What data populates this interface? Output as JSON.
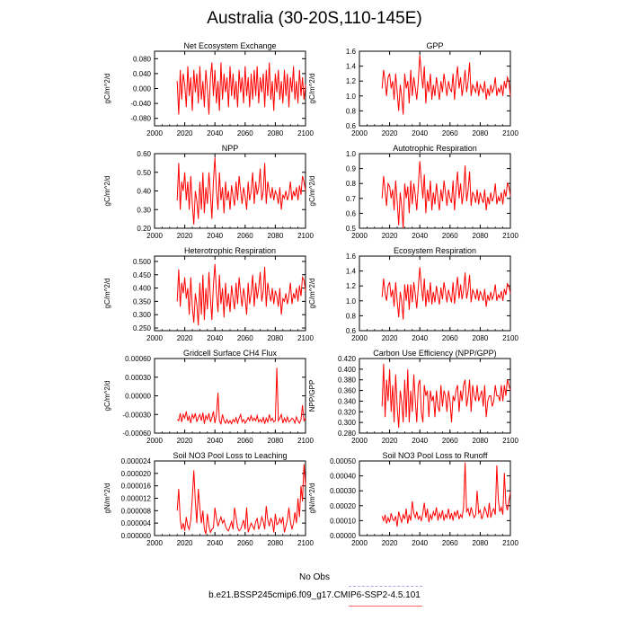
{
  "title": "Australia (30-20S,110-145E)",
  "legend": {
    "obs_label": "No Obs",
    "obs_color": "#aaaaee",
    "model_label": "b.e21.BSSP245cmip6.f09_g17.CMIP6-SSP2-4.5.101",
    "model_color": "#ff6666"
  },
  "series_color": "#ff0000",
  "chart_data": [
    {
      "id": "nee",
      "type": "line",
      "title": "Net Ecosystem Exchange",
      "ylabel": "gC/m^2/d",
      "xlim": [
        2000,
        2100
      ],
      "xticks": [
        2000,
        2020,
        2040,
        2060,
        2080,
        2100
      ],
      "ylim": [
        -0.1,
        0.1
      ],
      "yticks": [
        -0.08,
        -0.04,
        0.0,
        0.04,
        0.08
      ],
      "ytick_labels": [
        "-0.080",
        "-0.040",
        "0.000",
        "0.040",
        "0.080"
      ],
      "x_start": 2015,
      "x_end": 2100,
      "values": [
        0.02,
        -0.07,
        0.05,
        -0.03,
        0.04,
        0.01,
        -0.05,
        0.06,
        -0.02,
        0.03,
        -0.06,
        0.05,
        -0.01,
        0.04,
        -0.04,
        0.06,
        -0.03,
        0.02,
        -0.05,
        0.05,
        0.0,
        -0.07,
        0.03,
        0.07,
        -0.02,
        0.05,
        -0.04,
        0.02,
        -0.06,
        0.07,
        -0.03,
        0.04,
        -0.01,
        0.03,
        -0.05,
        0.06,
        -0.02,
        0.04,
        -0.03,
        0.02,
        -0.05,
        0.05,
        -0.01,
        0.03,
        -0.04,
        0.06,
        -0.02,
        0.03,
        -0.05,
        0.04,
        -0.03,
        0.05,
        -0.02,
        0.06,
        -0.04,
        0.03,
        -0.01,
        0.04,
        -0.05,
        0.05,
        -0.02,
        0.07,
        -0.03,
        0.02,
        -0.06,
        0.04,
        -0.01,
        0.05,
        -0.03,
        0.02,
        -0.04,
        0.05,
        -0.02,
        0.04,
        -0.05,
        0.03,
        -0.01,
        0.06,
        -0.03,
        0.02,
        -0.04,
        0.05,
        -0.02,
        0.03,
        -0.03,
        0.01
      ]
    },
    {
      "id": "gpp",
      "type": "line",
      "title": "GPP",
      "ylabel": "gC/m^2/d",
      "xlim": [
        2000,
        2100
      ],
      "xticks": [
        2000,
        2020,
        2040,
        2060,
        2080,
        2100
      ],
      "ylim": [
        0.6,
        1.6
      ],
      "yticks": [
        0.6,
        0.8,
        1.0,
        1.2,
        1.4,
        1.6
      ],
      "ytick_labels": [
        "0.6",
        "0.8",
        "1.0",
        "1.2",
        "1.4",
        "1.6"
      ],
      "x_start": 2015,
      "x_end": 2100,
      "values": [
        1.1,
        1.35,
        1.2,
        1.0,
        1.25,
        1.3,
        1.1,
        1.2,
        0.95,
        1.3,
        1.05,
        0.8,
        1.15,
        1.0,
        0.75,
        1.3,
        1.1,
        1.2,
        0.9,
        1.35,
        1.0,
        1.25,
        1.1,
        0.95,
        1.2,
        1.55,
        1.3,
        1.1,
        1.4,
        0.9,
        1.2,
        1.05,
        1.3,
        0.95,
        1.15,
        1.0,
        1.25,
        1.1,
        0.95,
        1.2,
        1.05,
        1.3,
        1.15,
        1.0,
        1.2,
        1.1,
        1.05,
        1.3,
        0.95,
        1.2,
        1.4,
        1.1,
        1.25,
        1.0,
        1.15,
        1.35,
        1.05,
        1.2,
        1.45,
        1.0,
        1.15,
        1.1,
        1.05,
        1.2,
        1.0,
        1.15,
        1.1,
        1.05,
        1.2,
        0.95,
        1.1,
        1.0,
        1.15,
        1.05,
        1.1,
        1.25,
        1.0,
        1.1,
        1.05,
        1.15,
        1.0,
        1.2,
        1.1,
        1.25,
        1.2,
        1.0
      ]
    },
    {
      "id": "npp",
      "type": "line",
      "title": "NPP",
      "ylabel": "gC/m^2/d",
      "xlim": [
        2000,
        2100
      ],
      "xticks": [
        2000,
        2020,
        2040,
        2060,
        2080,
        2100
      ],
      "ylim": [
        0.2,
        0.6
      ],
      "yticks": [
        0.2,
        0.3,
        0.4,
        0.5,
        0.6
      ],
      "ytick_labels": [
        "0.20",
        "0.30",
        "0.40",
        "0.50",
        "0.60"
      ],
      "x_start": 2015,
      "x_end": 2100,
      "values": [
        0.35,
        0.55,
        0.3,
        0.45,
        0.4,
        0.5,
        0.35,
        0.45,
        0.3,
        0.48,
        0.33,
        0.22,
        0.4,
        0.35,
        0.25,
        0.45,
        0.3,
        0.5,
        0.28,
        0.42,
        0.33,
        0.5,
        0.38,
        0.25,
        0.45,
        0.58,
        0.4,
        0.3,
        0.5,
        0.35,
        0.42,
        0.28,
        0.45,
        0.35,
        0.4,
        0.3,
        0.43,
        0.37,
        0.32,
        0.45,
        0.35,
        0.48,
        0.4,
        0.33,
        0.42,
        0.37,
        0.3,
        0.45,
        0.35,
        0.4,
        0.5,
        0.33,
        0.45,
        0.38,
        0.42,
        0.52,
        0.35,
        0.4,
        0.55,
        0.33,
        0.45,
        0.4,
        0.36,
        0.42,
        0.35,
        0.4,
        0.38,
        0.33,
        0.42,
        0.3,
        0.38,
        0.36,
        0.4,
        0.35,
        0.38,
        0.45,
        0.35,
        0.4,
        0.37,
        0.42,
        0.35,
        0.43,
        0.38,
        0.48,
        0.45,
        0.4
      ]
    },
    {
      "id": "ar",
      "type": "line",
      "title": "Autotrophic Respiration",
      "ylabel": "gC/m^2/d",
      "xlim": [
        2000,
        2100
      ],
      "xticks": [
        2000,
        2020,
        2040,
        2060,
        2080,
        2100
      ],
      "ylim": [
        0.5,
        1.0
      ],
      "yticks": [
        0.5,
        0.6,
        0.7,
        0.8,
        0.9,
        1.0
      ],
      "ytick_labels": [
        "0.5",
        "0.6",
        "0.7",
        "0.8",
        "0.9",
        "1.0"
      ],
      "x_start": 2015,
      "x_end": 2100,
      "values": [
        0.7,
        0.85,
        0.75,
        0.65,
        0.8,
        0.78,
        0.7,
        0.76,
        0.62,
        0.82,
        0.68,
        0.52,
        0.74,
        0.65,
        0.5,
        0.8,
        0.7,
        0.78,
        0.6,
        0.82,
        0.66,
        0.8,
        0.72,
        0.62,
        0.78,
        0.95,
        0.82,
        0.7,
        0.86,
        0.6,
        0.76,
        0.68,
        0.82,
        0.62,
        0.74,
        0.66,
        0.8,
        0.7,
        0.62,
        0.76,
        0.68,
        0.82,
        0.74,
        0.65,
        0.76,
        0.7,
        0.67,
        0.82,
        0.62,
        0.76,
        0.88,
        0.7,
        0.8,
        0.66,
        0.74,
        0.92,
        0.68,
        0.76,
        0.88,
        0.65,
        0.74,
        0.72,
        0.67,
        0.76,
        0.66,
        0.74,
        0.7,
        0.67,
        0.76,
        0.62,
        0.71,
        0.66,
        0.74,
        0.68,
        0.71,
        0.8,
        0.66,
        0.71,
        0.68,
        0.74,
        0.66,
        0.76,
        0.71,
        0.8,
        0.78,
        0.72
      ]
    },
    {
      "id": "hr",
      "type": "line",
      "title": "Heterotrophic Respiration",
      "ylabel": "gC/m^2/d",
      "xlim": [
        2000,
        2100
      ],
      "xticks": [
        2000,
        2020,
        2040,
        2060,
        2080,
        2100
      ],
      "ylim": [
        0.24,
        0.52
      ],
      "yticks": [
        0.25,
        0.3,
        0.35,
        0.4,
        0.45,
        0.5
      ],
      "ytick_labels": [
        "0.250",
        "0.300",
        "0.350",
        "0.400",
        "0.450",
        "0.500"
      ],
      "x_start": 2015,
      "x_end": 2100,
      "values": [
        0.35,
        0.47,
        0.33,
        0.42,
        0.38,
        0.44,
        0.36,
        0.4,
        0.3,
        0.44,
        0.33,
        0.27,
        0.38,
        0.34,
        0.26,
        0.42,
        0.3,
        0.45,
        0.28,
        0.4,
        0.32,
        0.46,
        0.36,
        0.28,
        0.41,
        0.49,
        0.38,
        0.31,
        0.45,
        0.34,
        0.4,
        0.29,
        0.42,
        0.33,
        0.38,
        0.31,
        0.41,
        0.36,
        0.32,
        0.42,
        0.34,
        0.44,
        0.38,
        0.33,
        0.4,
        0.36,
        0.3,
        0.42,
        0.34,
        0.38,
        0.45,
        0.33,
        0.42,
        0.36,
        0.4,
        0.46,
        0.35,
        0.39,
        0.48,
        0.33,
        0.42,
        0.38,
        0.35,
        0.4,
        0.34,
        0.39,
        0.37,
        0.33,
        0.4,
        0.3,
        0.36,
        0.35,
        0.38,
        0.34,
        0.37,
        0.42,
        0.34,
        0.38,
        0.36,
        0.4,
        0.35,
        0.41,
        0.37,
        0.44,
        0.43,
        0.39
      ]
    },
    {
      "id": "er",
      "type": "line",
      "title": "Ecosystem Respiration",
      "ylabel": "gC/m^2/d",
      "xlim": [
        2000,
        2100
      ],
      "xticks": [
        2000,
        2020,
        2040,
        2060,
        2080,
        2100
      ],
      "ylim": [
        0.6,
        1.6
      ],
      "yticks": [
        0.6,
        0.8,
        1.0,
        1.2,
        1.4,
        1.6
      ],
      "ytick_labels": [
        "0.6",
        "0.8",
        "1.0",
        "1.2",
        "1.4",
        "1.6"
      ],
      "x_start": 2015,
      "x_end": 2100,
      "values": [
        1.05,
        1.3,
        1.1,
        1.0,
        1.2,
        1.25,
        1.05,
        1.15,
        0.92,
        1.25,
        1.0,
        0.78,
        1.12,
        1.0,
        0.75,
        1.22,
        1.0,
        1.22,
        0.88,
        1.22,
        0.98,
        1.25,
        1.08,
        0.9,
        1.18,
        1.45,
        1.2,
        1.0,
        1.3,
        0.92,
        1.15,
        0.98,
        1.25,
        0.95,
        1.12,
        0.98,
        1.2,
        1.06,
        0.95,
        1.18,
        1.02,
        1.25,
        1.12,
        0.98,
        1.15,
        1.06,
        0.98,
        1.25,
        0.96,
        1.14,
        1.32,
        1.03,
        1.22,
        1.02,
        1.14,
        1.38,
        1.03,
        1.15,
        1.35,
        0.98,
        1.15,
        1.1,
        1.02,
        1.16,
        1.0,
        1.13,
        1.07,
        1.0,
        1.16,
        0.92,
        1.08,
        1.0,
        1.12,
        1.02,
        1.08,
        1.22,
        1.0,
        1.08,
        1.04,
        1.13,
        1.0,
        1.16,
        1.08,
        1.23,
        1.2,
        1.1
      ]
    },
    {
      "id": "ch4",
      "type": "line",
      "title": "Gridcell Surface CH4 Flux",
      "ylabel": "gC/m^2/d",
      "xlim": [
        2000,
        2100
      ],
      "xticks": [
        2000,
        2020,
        2040,
        2060,
        2080,
        2100
      ],
      "ylim": [
        -0.0006,
        0.0006
      ],
      "yticks": [
        -0.0006,
        -0.0003,
        0.0,
        0.0003,
        0.0006
      ],
      "ytick_labels": [
        "-0.00060",
        "-0.00030",
        "0.00000",
        "0.00030",
        "0.00060"
      ],
      "x_start": 2015,
      "x_end": 2100,
      "values": [
        -0.00038,
        -0.0004,
        -0.00028,
        -0.00042,
        -0.0003,
        -0.00036,
        -0.00025,
        -0.0004,
        -0.00033,
        -0.00044,
        -0.0003,
        -0.00036,
        -0.00028,
        -0.00042,
        -0.00035,
        -0.0003,
        -0.0004,
        -0.00027,
        -0.00045,
        -0.00032,
        -0.00038,
        -0.00028,
        -0.00042,
        -0.00035,
        -0.00025,
        -0.00044,
        -0.0003,
        5e-05,
        -0.0004,
        -0.00045,
        -0.0003,
        -0.0004,
        -0.00044,
        -0.00038,
        -0.00044,
        -0.0004,
        -0.00045,
        -0.00038,
        -0.00042,
        -0.00035,
        -0.00044,
        -0.00036,
        -0.0003,
        -0.00042,
        -0.00038,
        -0.00044,
        -0.0004,
        -0.00035,
        -0.0004,
        -0.00032,
        -0.0004,
        -0.00036,
        -0.0004,
        -0.00032,
        -0.00042,
        -0.00038,
        -0.00042,
        -0.00035,
        -0.00045,
        -0.00036,
        -0.00042,
        -0.0003,
        -0.0004,
        -0.00036,
        -0.00042,
        -0.0004,
        0.00045,
        -0.0004,
        -0.00036,
        -0.0003,
        -0.00044,
        -0.00036,
        -0.00042,
        -0.00034,
        -0.00042,
        -0.0004,
        -0.00036,
        -0.00038,
        -0.00044,
        -0.00034,
        -0.0004,
        -0.00044,
        -0.00038,
        -0.00015,
        -0.0004,
        -0.00036
      ]
    },
    {
      "id": "cue",
      "type": "line",
      "title": "Carbon Use Efficiency (NPP/GPP)",
      "ylabel": "NPP/GPP",
      "xlim": [
        2000,
        2100
      ],
      "xticks": [
        2000,
        2020,
        2040,
        2060,
        2080,
        2100
      ],
      "ylim": [
        0.28,
        0.42
      ],
      "yticks": [
        0.28,
        0.3,
        0.32,
        0.34,
        0.36,
        0.38,
        0.4,
        0.42
      ],
      "ytick_labels": [
        "0.280",
        "0.300",
        "0.320",
        "0.340",
        "0.360",
        "0.380",
        "0.400",
        "0.420"
      ],
      "x_start": 2015,
      "x_end": 2100,
      "values": [
        0.33,
        0.41,
        0.31,
        0.38,
        0.34,
        0.4,
        0.32,
        0.37,
        0.3,
        0.39,
        0.33,
        0.29,
        0.36,
        0.34,
        0.3,
        0.38,
        0.31,
        0.4,
        0.3,
        0.36,
        0.32,
        0.39,
        0.34,
        0.3,
        0.37,
        0.38,
        0.32,
        0.3,
        0.37,
        0.35,
        0.36,
        0.31,
        0.36,
        0.34,
        0.35,
        0.31,
        0.36,
        0.33,
        0.32,
        0.37,
        0.33,
        0.36,
        0.35,
        0.32,
        0.36,
        0.34,
        0.3,
        0.35,
        0.34,
        0.36,
        0.37,
        0.32,
        0.36,
        0.34,
        0.37,
        0.38,
        0.33,
        0.35,
        0.38,
        0.32,
        0.37,
        0.35,
        0.34,
        0.37,
        0.34,
        0.35,
        0.36,
        0.33,
        0.37,
        0.31,
        0.34,
        0.35,
        0.35,
        0.33,
        0.34,
        0.37,
        0.35,
        0.35,
        0.34,
        0.37,
        0.34,
        0.37,
        0.35,
        0.38,
        0.37,
        0.36
      ]
    },
    {
      "id": "no3leach",
      "type": "line",
      "title": "Soil NO3 Pool Loss to Leaching",
      "ylabel": "gN/m^2/d",
      "xlim": [
        2000,
        2100
      ],
      "xticks": [
        2000,
        2020,
        2040,
        2060,
        2080,
        2100
      ],
      "ylim": [
        0,
        2.4e-05
      ],
      "yticks": [
        0,
        4e-06,
        8e-06,
        1.2e-05,
        1.6e-05,
        2e-05,
        2.4e-05
      ],
      "ytick_labels": [
        "0.000000",
        "0.000004",
        "0.000008",
        "0.000012",
        "0.000016",
        "0.000020",
        "0.000024"
      ],
      "x_start": 2015,
      "x_end": 2100,
      "values": [
        8e-06,
        1.5e-05,
        5e-06,
        2e-06,
        4e-06,
        1.5e-06,
        6e-06,
        3e-06,
        2e-06,
        5e-06,
        1.2e-05,
        2.1e-05,
        1.1e-05,
        4e-06,
        1.5e-05,
        9e-06,
        4e-06,
        8e-06,
        2e-06,
        5e-07,
        7e-06,
        3e-06,
        1e-06,
        2e-06,
        2.5e-06,
        9e-06,
        5.5e-06,
        3e-06,
        4.5e-06,
        6e-06,
        4e-06,
        5e-06,
        3e-06,
        2e-06,
        1.5e-06,
        3e-06,
        4.5e-06,
        2e-06,
        9e-06,
        6e-06,
        2.5e-06,
        1.5e-06,
        2e-06,
        3.5e-06,
        5e-06,
        2e-06,
        9e-06,
        1e-06,
        2.5e-06,
        4e-06,
        3e-06,
        2e-06,
        4.5e-06,
        5.5e-06,
        2e-06,
        3.5e-06,
        6e-06,
        4.5e-06,
        2e-06,
        9.5e-06,
        5e-06,
        3e-06,
        5.5e-06,
        4.5e-06,
        1e-06,
        7e-06,
        3.5e-06,
        4e-06,
        5.5e-06,
        4e-06,
        6e-06,
        1e-06,
        3e-06,
        5e-06,
        9e-06,
        4.5e-06,
        2e-06,
        4e-06,
        7.5e-06,
        4e-06,
        1.2e-05,
        6e-06,
        1.6e-05,
        1.1e-05,
        2.3e-05,
        1.6e-05
      ]
    },
    {
      "id": "no3runoff",
      "type": "line",
      "title": "Soil NO3 Pool Loss to Runoff",
      "ylabel": "gN/m^2/d",
      "xlim": [
        2000,
        2100
      ],
      "xticks": [
        2000,
        2020,
        2040,
        2060,
        2080,
        2100
      ],
      "ylim": [
        0,
        0.0005
      ],
      "yticks": [
        0,
        0.0001,
        0.0002,
        0.0003,
        0.0004,
        0.0005
      ],
      "ytick_labels": [
        "0.00000",
        "0.00010",
        "0.00020",
        "0.00030",
        "0.00040",
        "0.00050"
      ],
      "x_start": 2015,
      "x_end": 2100,
      "values": [
        0.00013,
        0.0001,
        0.00014,
        8e-05,
        0.00012,
        9e-05,
        0.00015,
        0.00011,
        0.0001,
        0.00013,
        6e-05,
        0.00016,
        0.00012,
        9e-05,
        0.00014,
        0.00011,
        0.00018,
        8e-05,
        0.00014,
        0.0001,
        0.00023,
        0.00015,
        0.00012,
        0.00016,
        0.00011,
        0.00013,
        0.0001,
        0.00015,
        0.00022,
        0.00012,
        0.00018,
        9e-05,
        0.00014,
        0.00011,
        0.00016,
        0.00013,
        0.00019,
        0.0001,
        0.00015,
        0.00012,
        0.00017,
        0.0001,
        0.00014,
        0.00012,
        0.00018,
        0.00011,
        0.00015,
        0.0001,
        0.00016,
        0.00013,
        0.00017,
        0.00011,
        0.00014,
        0.00012,
        0.00019,
        0.00049,
        0.00016,
        0.00018,
        0.00013,
        0.00019,
        0.00015,
        0.00012,
        0.00014,
        0.0003,
        0.00015,
        0.00017,
        0.00011,
        0.00014,
        0.00019,
        0.00016,
        0.00012,
        0.00022,
        0.00012,
        0.00016,
        0.00018,
        0.00014,
        0.00047,
        0.00024,
        0.00016,
        0.00019,
        0.00014,
        0.00042,
        0.00021,
        0.00017,
        0.00023,
        0.00029
      ]
    }
  ]
}
